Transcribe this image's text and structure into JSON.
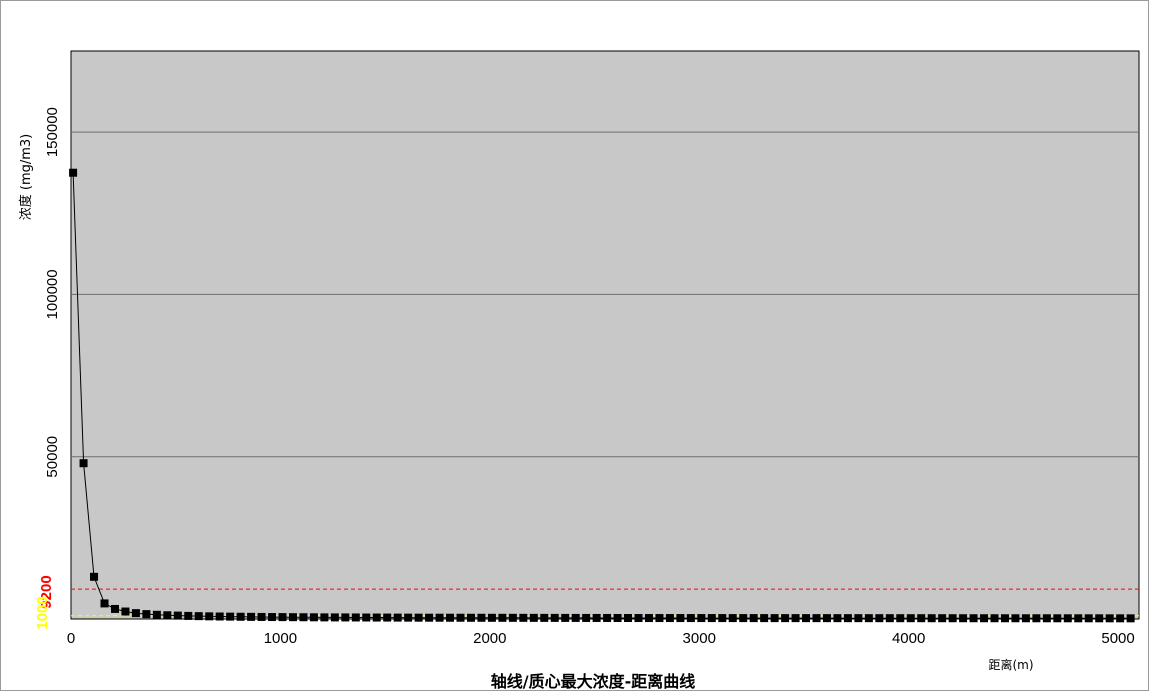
{
  "chart_data": {
    "type": "line",
    "title": "轴线/质心最大浓度-距离曲线",
    "xlabel": "距离(m)",
    "ylabel": "浓度 (mg/m3)",
    "xlim": [
      0,
      5100
    ],
    "ylim": [
      0,
      175000
    ],
    "x_ticks": [
      0,
      1000,
      2000,
      3000,
      4000,
      5000
    ],
    "y_ticks": [
      50000,
      100000,
      150000
    ],
    "grid": "horizontal",
    "thresholds": [
      {
        "label": "9200",
        "value": 9200,
        "color": "#ff0000"
      },
      {
        "label": "1000",
        "value": 1000,
        "color": "#ffff00"
      }
    ],
    "series": [
      {
        "color": "#000000",
        "x": [
          10,
          60,
          110,
          160,
          210,
          260,
          310,
          360,
          410,
          460,
          510,
          560,
          610,
          660,
          710,
          760,
          810,
          860,
          910,
          960,
          1010,
          1060,
          1110,
          1160,
          1210,
          1260,
          1310,
          1360,
          1410,
          1460,
          1510,
          1560,
          1610,
          1660,
          1710,
          1760,
          1810,
          1860,
          1910,
          1960,
          2010,
          2060,
          2110,
          2160,
          2210,
          2260,
          2310,
          2360,
          2410,
          2460,
          2510,
          2560,
          2610,
          2660,
          2710,
          2760,
          2810,
          2860,
          2910,
          2960,
          3010,
          3060,
          3110,
          3160,
          3210,
          3260,
          3310,
          3360,
          3410,
          3460,
          3510,
          3560,
          3610,
          3660,
          3710,
          3760,
          3810,
          3860,
          3910,
          3960,
          4010,
          4060,
          4110,
          4160,
          4210,
          4260,
          4310,
          4360,
          4410,
          4460,
          4510,
          4560,
          4610,
          4660,
          4710,
          4760,
          4810,
          4860,
          4910,
          4960,
          5010,
          5060
        ],
        "y": [
          137500,
          48000,
          13000,
          4800,
          3100,
          2300,
          1800,
          1500,
          1300,
          1150,
          1050,
          950,
          880,
          820,
          770,
          730,
          690,
          660,
          630,
          600,
          580,
          560,
          540,
          520,
          500,
          490,
          480,
          470,
          460,
          450,
          440,
          430,
          420,
          410,
          400,
          395,
          390,
          385,
          380,
          375,
          370,
          365,
          360,
          355,
          350,
          345,
          340,
          335,
          330,
          325,
          320,
          315,
          310,
          305,
          300,
          298,
          296,
          294,
          292,
          290,
          288,
          286,
          284,
          282,
          280,
          278,
          276,
          274,
          272,
          270,
          268,
          266,
          264,
          262,
          260,
          258,
          256,
          254,
          252,
          250,
          248,
          246,
          244,
          242,
          240,
          238,
          236,
          234,
          232,
          230,
          228,
          226,
          224,
          222,
          220,
          218,
          216,
          214,
          212,
          210,
          208,
          206
        ]
      }
    ]
  }
}
